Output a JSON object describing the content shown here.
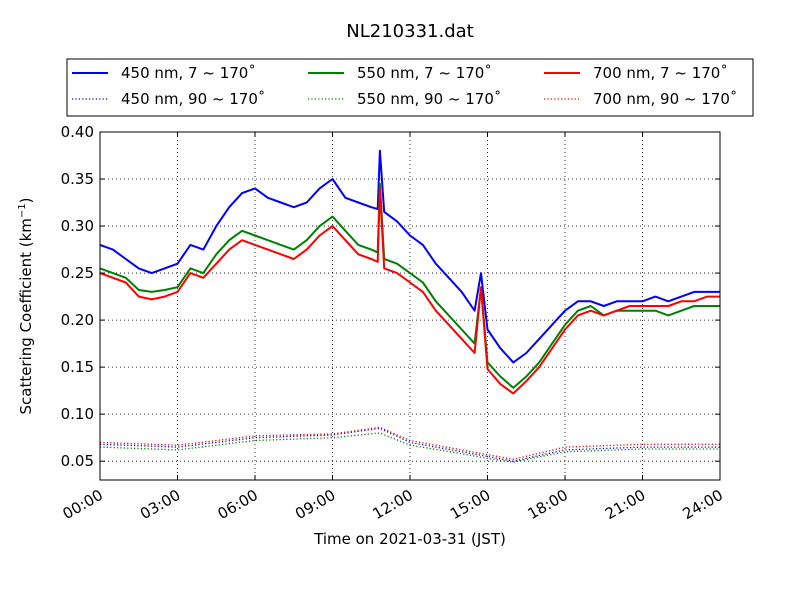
{
  "chart_data": {
    "type": "line",
    "title": "NL210331.dat",
    "xlabel": "Time on 2021-03-31 (JST)",
    "ylabel": "Scattering Coefficient (km",
    "ylabel_sup": "−1",
    "ylabel_close": ")",
    "xlim": [
      "00:00",
      "24:00"
    ],
    "ylim": [
      0.03,
      0.4
    ],
    "x_ticks": [
      "00:00",
      "03:00",
      "06:00",
      "09:00",
      "12:00",
      "15:00",
      "18:00",
      "21:00",
      "24:00"
    ],
    "x_tick_hours": [
      0,
      3,
      6,
      9,
      12,
      15,
      18,
      21,
      24
    ],
    "y_ticks": [
      0.05,
      0.1,
      0.15,
      0.2,
      0.25,
      0.3,
      0.35,
      0.4
    ],
    "y_tick_labels": [
      "0.05",
      "0.10",
      "0.15",
      "0.20",
      "0.25",
      "0.30",
      "0.35",
      "0.40"
    ],
    "grid": true,
    "legend_position": "top, above plot, 3 columns",
    "series": [
      {
        "name": "450 nm, 7 ~ 170˚",
        "color": "#0000ff",
        "style": "solid",
        "x": [
          "00:00",
          "00:30",
          "01:00",
          "01:30",
          "02:00",
          "02:30",
          "03:00",
          "03:30",
          "04:00",
          "04:30",
          "05:00",
          "05:30",
          "06:00",
          "06:30",
          "07:00",
          "07:30",
          "08:00",
          "08:30",
          "09:00",
          "09:30",
          "10:00",
          "10:30",
          "10:45",
          "10:50",
          "11:00",
          "11:30",
          "12:00",
          "12:30",
          "13:00",
          "13:30",
          "14:00",
          "14:30",
          "14:45",
          "15:00",
          "15:30",
          "16:00",
          "16:30",
          "17:00",
          "17:30",
          "18:00",
          "18:30",
          "19:00",
          "19:30",
          "20:00",
          "20:30",
          "21:00",
          "21:30",
          "22:00",
          "22:30",
          "23:00",
          "23:30",
          "24:00"
        ],
        "y": [
          0.28,
          0.275,
          0.265,
          0.255,
          0.25,
          0.255,
          0.26,
          0.28,
          0.275,
          0.3,
          0.32,
          0.335,
          0.34,
          0.33,
          0.325,
          0.32,
          0.325,
          0.34,
          0.35,
          0.33,
          0.325,
          0.32,
          0.318,
          0.38,
          0.315,
          0.305,
          0.29,
          0.28,
          0.26,
          0.245,
          0.23,
          0.21,
          0.25,
          0.19,
          0.17,
          0.155,
          0.165,
          0.18,
          0.195,
          0.21,
          0.22,
          0.22,
          0.215,
          0.22,
          0.22,
          0.22,
          0.225,
          0.22,
          0.225,
          0.23,
          0.23,
          0.23
        ]
      },
      {
        "name": "550 nm, 7 ~ 170˚",
        "color": "#008000",
        "style": "solid",
        "x": [
          "00:00",
          "00:30",
          "01:00",
          "01:30",
          "02:00",
          "02:30",
          "03:00",
          "03:30",
          "04:00",
          "04:30",
          "05:00",
          "05:30",
          "06:00",
          "06:30",
          "07:00",
          "07:30",
          "08:00",
          "08:30",
          "09:00",
          "09:30",
          "10:00",
          "10:30",
          "10:45",
          "10:50",
          "11:00",
          "11:30",
          "12:00",
          "12:30",
          "13:00",
          "13:30",
          "14:00",
          "14:30",
          "14:45",
          "15:00",
          "15:30",
          "16:00",
          "16:30",
          "17:00",
          "17:30",
          "18:00",
          "18:30",
          "19:00",
          "19:30",
          "20:00",
          "20:30",
          "21:00",
          "21:30",
          "22:00",
          "22:30",
          "23:00",
          "23:30",
          "24:00"
        ],
        "y": [
          0.255,
          0.25,
          0.245,
          0.232,
          0.23,
          0.232,
          0.235,
          0.255,
          0.25,
          0.27,
          0.285,
          0.295,
          0.29,
          0.285,
          0.28,
          0.275,
          0.285,
          0.3,
          0.31,
          0.295,
          0.28,
          0.275,
          0.272,
          0.345,
          0.265,
          0.26,
          0.25,
          0.24,
          0.22,
          0.205,
          0.19,
          0.175,
          0.235,
          0.155,
          0.14,
          0.128,
          0.14,
          0.155,
          0.175,
          0.195,
          0.21,
          0.215,
          0.205,
          0.21,
          0.21,
          0.21,
          0.21,
          0.205,
          0.21,
          0.215,
          0.215,
          0.215
        ]
      },
      {
        "name": "700 nm, 7 ~ 170˚",
        "color": "#ff0000",
        "style": "solid",
        "x": [
          "00:00",
          "00:30",
          "01:00",
          "01:30",
          "02:00",
          "02:30",
          "03:00",
          "03:30",
          "04:00",
          "04:30",
          "05:00",
          "05:30",
          "06:00",
          "06:30",
          "07:00",
          "07:30",
          "08:00",
          "08:30",
          "09:00",
          "09:30",
          "10:00",
          "10:30",
          "10:45",
          "10:50",
          "11:00",
          "11:30",
          "12:00",
          "12:30",
          "13:00",
          "13:30",
          "14:00",
          "14:30",
          "14:45",
          "15:00",
          "15:30",
          "16:00",
          "16:30",
          "17:00",
          "17:30",
          "18:00",
          "18:30",
          "19:00",
          "19:30",
          "20:00",
          "20:30",
          "21:00",
          "21:30",
          "22:00",
          "22:30",
          "23:00",
          "23:30",
          "24:00"
        ],
        "y": [
          0.25,
          0.245,
          0.24,
          0.225,
          0.222,
          0.225,
          0.23,
          0.25,
          0.245,
          0.26,
          0.275,
          0.285,
          0.28,
          0.275,
          0.27,
          0.265,
          0.275,
          0.29,
          0.3,
          0.285,
          0.27,
          0.265,
          0.262,
          0.34,
          0.255,
          0.25,
          0.24,
          0.23,
          0.21,
          0.195,
          0.18,
          0.165,
          0.235,
          0.148,
          0.132,
          0.122,
          0.135,
          0.15,
          0.17,
          0.19,
          0.205,
          0.21,
          0.205,
          0.21,
          0.215,
          0.215,
          0.215,
          0.215,
          0.22,
          0.22,
          0.225,
          0.225
        ]
      },
      {
        "name": "450 nm, 90 ~ 170˚",
        "color": "#0000ff",
        "style": "dotted",
        "x": [
          "00:00",
          "03:00",
          "06:00",
          "09:00",
          "10:50",
          "12:00",
          "14:00",
          "15:00",
          "16:00",
          "18:00",
          "21:00",
          "24:00"
        ],
        "y": [
          0.068,
          0.065,
          0.075,
          0.078,
          0.085,
          0.07,
          0.06,
          0.055,
          0.05,
          0.062,
          0.065,
          0.065
        ]
      },
      {
        "name": "550 nm, 90 ~ 170˚",
        "color": "#008000",
        "style": "dotted",
        "x": [
          "00:00",
          "03:00",
          "06:00",
          "09:00",
          "10:50",
          "12:00",
          "14:00",
          "15:00",
          "16:00",
          "18:00",
          "21:00",
          "24:00"
        ],
        "y": [
          0.065,
          0.062,
          0.072,
          0.075,
          0.08,
          0.067,
          0.058,
          0.053,
          0.049,
          0.06,
          0.063,
          0.063
        ]
      },
      {
        "name": "700 nm, 90 ~ 170˚",
        "color": "#ff0000",
        "style": "dotted",
        "x": [
          "00:00",
          "03:00",
          "06:00",
          "09:00",
          "10:50",
          "12:00",
          "14:00",
          "15:00",
          "16:00",
          "18:00",
          "21:00",
          "24:00"
        ],
        "y": [
          0.07,
          0.067,
          0.077,
          0.079,
          0.086,
          0.072,
          0.062,
          0.057,
          0.052,
          0.065,
          0.068,
          0.068
        ]
      }
    ]
  }
}
